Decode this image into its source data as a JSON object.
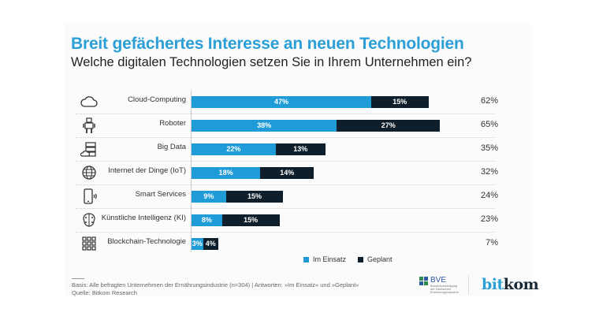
{
  "title": "Breit gefächertes Interesse an neuen Technologien",
  "subtitle": "Welche digitalen Technologien setzen Sie in Ihrem Unternehmen ein?",
  "colors": {
    "title": "#2b9fd6",
    "im_einsatz": "#1f9bd7",
    "geplant": "#0e1f2b"
  },
  "chart_data": {
    "type": "bar",
    "orientation": "horizontal",
    "stacked": true,
    "title": "Breit gefächertes Interesse an neuen Technologien",
    "subtitle": "Welche digitalen Technologien setzen Sie in Ihrem Unternehmen ein?",
    "categories": [
      "Cloud-Computing",
      "Roboter",
      "Big Data",
      "Internet der Dinge (IoT)",
      "Smart Services",
      "Künstliche Intelligenz (KI)",
      "Blockchain-Technologie"
    ],
    "icons": [
      "cloud-icon",
      "robot-icon",
      "server-cloud-icon",
      "globe-icon",
      "smartphone-icon",
      "brain-icon",
      "blockchain-icon"
    ],
    "series": [
      {
        "name": "Im Einsatz",
        "values": [
          47,
          38,
          22,
          18,
          9,
          8,
          3
        ]
      },
      {
        "name": "Geplant",
        "values": [
          15,
          27,
          13,
          14,
          15,
          15,
          4
        ]
      }
    ],
    "totals": [
      62,
      65,
      35,
      32,
      24,
      23,
      7
    ],
    "value_labels": {
      "Im Einsatz": [
        "47%",
        "38%",
        "22%",
        "18%",
        "9%",
        "8%",
        "3%"
      ],
      "Geplant": [
        "15%",
        "27%",
        "13%",
        "14%",
        "15%",
        "15%",
        "4%"
      ]
    },
    "total_labels": [
      "62%",
      "65%",
      "35%",
      "32%",
      "24%",
      "23%",
      "7%"
    ],
    "unit": "%",
    "xlim": [
      0,
      100
    ],
    "grid": false,
    "legend": "bottom-center",
    "xlabel": "",
    "ylabel": ""
  },
  "legend": {
    "im_einsatz": "Im Einsatz",
    "geplant": "Geplant"
  },
  "footnotes": {
    "basis": "Basis: Alle befragten Unternehmen der Ernährungsindustrie (n=304) | Antworten: »Im Einsatz« und »Geplant«",
    "quelle": "Quelle: Bitkom Research"
  },
  "logos": {
    "bve_name": "BVE",
    "bve_sub": "Bundesvereinigung der Deutschen Ernährungsindustrie",
    "bitkom_bit": "bit",
    "bitkom_kom": "kom"
  }
}
